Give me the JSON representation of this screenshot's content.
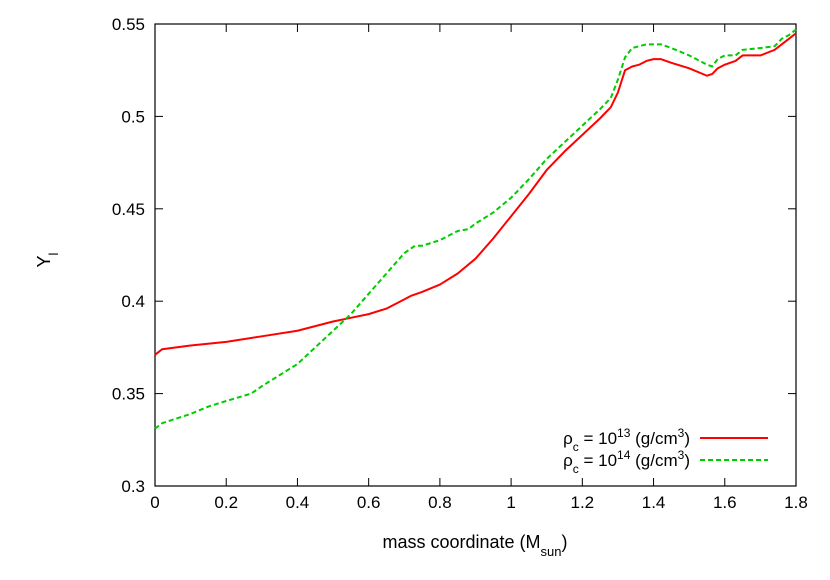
{
  "chart_data": {
    "type": "line",
    "title": "",
    "xlabel": {
      "main": "mass coordinate (M",
      "sub": "sun",
      "tail": ")"
    },
    "ylabel": {
      "main": "Y",
      "sub": "l"
    },
    "xlim": [
      0,
      1.8
    ],
    "ylim": [
      0.3,
      0.55
    ],
    "x_ticks": [
      0,
      0.2,
      0.4,
      0.6,
      0.8,
      1,
      1.2,
      1.4,
      1.6,
      1.8
    ],
    "x_tick_labels": [
      "0",
      "0.2",
      "0.4",
      "0.6",
      "0.8",
      "1",
      "1.2",
      "1.4",
      "1.6",
      "1.8"
    ],
    "y_ticks": [
      0.3,
      0.35,
      0.4,
      0.45,
      0.5,
      0.55
    ],
    "y_tick_labels": [
      "0.3",
      "0.35",
      "0.4",
      "0.45",
      "0.5",
      "0.55"
    ],
    "grid": false,
    "legend_position": "bottom-right",
    "series": [
      {
        "legend": {
          "base": "ρ",
          "sub": "c",
          "mid": " = 10",
          "sup": "13",
          "unit_open": " (g/cm",
          "unit_sup": "3",
          "unit_close": ")"
        },
        "color": "#ff0000",
        "dash": "solid",
        "x": [
          0,
          0.02,
          0.1,
          0.2,
          0.3,
          0.4,
          0.5,
          0.55,
          0.6,
          0.65,
          0.7,
          0.72,
          0.75,
          0.8,
          0.85,
          0.9,
          0.95,
          1.0,
          1.05,
          1.1,
          1.15,
          1.2,
          1.25,
          1.28,
          1.3,
          1.32,
          1.34,
          1.36,
          1.38,
          1.4,
          1.42,
          1.45,
          1.5,
          1.55,
          1.565,
          1.58,
          1.6,
          1.63,
          1.65,
          1.7,
          1.74,
          1.76,
          1.78,
          1.8
        ],
        "y": [
          0.371,
          0.374,
          0.376,
          0.378,
          0.381,
          0.384,
          0.389,
          0.391,
          0.393,
          0.396,
          0.401,
          0.403,
          0.405,
          0.409,
          0.415,
          0.423,
          0.434,
          0.446,
          0.458,
          0.471,
          0.481,
          0.49,
          0.499,
          0.505,
          0.513,
          0.525,
          0.527,
          0.528,
          0.53,
          0.531,
          0.531,
          0.529,
          0.526,
          0.522,
          0.523,
          0.526,
          0.528,
          0.53,
          0.533,
          0.533,
          0.536,
          0.539,
          0.542,
          0.545
        ]
      },
      {
        "legend": {
          "base": "ρ",
          "sub": "c",
          "mid": " = 10",
          "sup": "14",
          "unit_open": " (g/cm",
          "unit_sup": "3",
          "unit_close": ")"
        },
        "color": "#00cc00",
        "dash": "dashed",
        "x": [
          0,
          0.02,
          0.1,
          0.15,
          0.2,
          0.27,
          0.3,
          0.35,
          0.4,
          0.45,
          0.5,
          0.55,
          0.6,
          0.65,
          0.7,
          0.73,
          0.75,
          0.8,
          0.83,
          0.85,
          0.88,
          0.9,
          0.95,
          1.0,
          1.05,
          1.1,
          1.15,
          1.2,
          1.25,
          1.28,
          1.3,
          1.32,
          1.34,
          1.36,
          1.38,
          1.4,
          1.42,
          1.45,
          1.5,
          1.55,
          1.565,
          1.58,
          1.6,
          1.63,
          1.65,
          1.7,
          1.74,
          1.76,
          1.78,
          1.8
        ],
        "y": [
          0.331,
          0.334,
          0.339,
          0.343,
          0.346,
          0.35,
          0.354,
          0.36,
          0.366,
          0.375,
          0.384,
          0.393,
          0.404,
          0.415,
          0.426,
          0.43,
          0.43,
          0.433,
          0.436,
          0.438,
          0.439,
          0.442,
          0.448,
          0.456,
          0.466,
          0.477,
          0.486,
          0.495,
          0.504,
          0.51,
          0.52,
          0.532,
          0.537,
          0.538,
          0.539,
          0.539,
          0.539,
          0.537,
          0.533,
          0.528,
          0.527,
          0.531,
          0.533,
          0.533,
          0.536,
          0.537,
          0.538,
          0.542,
          0.544,
          0.547
        ]
      }
    ]
  }
}
